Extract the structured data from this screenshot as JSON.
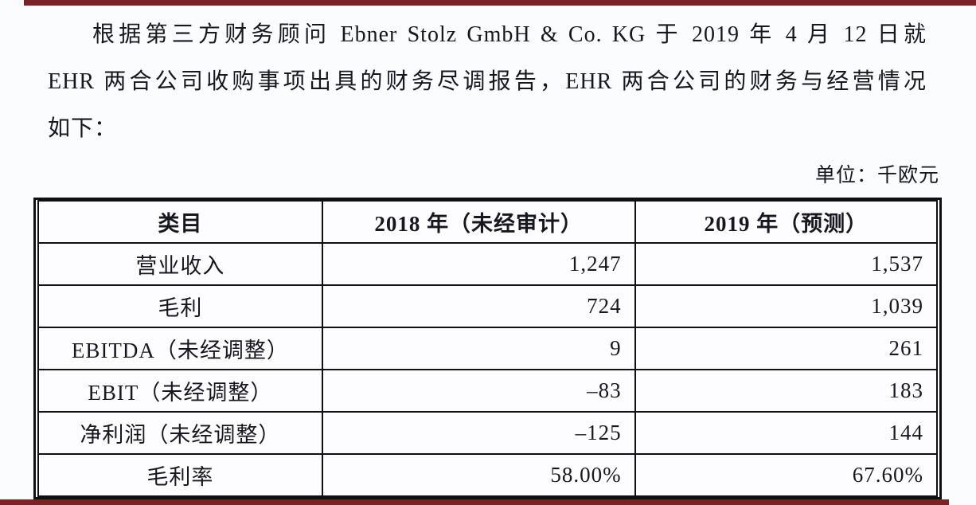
{
  "page": {
    "background": "#fbfcfe",
    "accent_bar_color": "#7e2026",
    "text_color": "#17171f"
  },
  "paragraph": {
    "lines": [
      "根据第三方财务顾问 Ebner Stolz GmbH & Co. KG 于 2019 年 4 月 12 日就",
      "EHR 两合公司收购事项出具的财务尽调报告，EHR 两合公司的财务与经营情况",
      "如下："
    ]
  },
  "unit_note": "单位：千欧元",
  "table": {
    "headers": [
      "类目",
      "2018 年（未经审计）",
      "2019 年（预测）"
    ],
    "rows": [
      {
        "label": "营业收入",
        "y2018": "1,247",
        "y2019": "1,537"
      },
      {
        "label": "毛利",
        "y2018": "724",
        "y2019": "1,039"
      },
      {
        "label": "EBITDA（未经调整）",
        "y2018": "9",
        "y2019": "261"
      },
      {
        "label": "EBIT（未经调整）",
        "y2018": "–83",
        "y2019": "183"
      },
      {
        "label": "净利润（未经调整）",
        "y2018": "–125",
        "y2019": "144"
      },
      {
        "label": "毛利率",
        "y2018": "58.00%",
        "y2019": "67.60%"
      }
    ]
  }
}
